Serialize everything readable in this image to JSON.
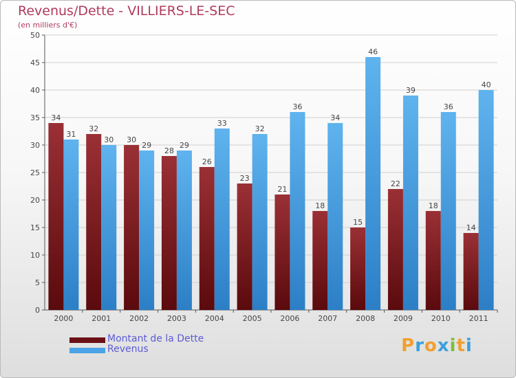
{
  "chart_data": {
    "type": "bar",
    "title": "Revenus/Dette - VILLIERS-LE-SEC",
    "subtitle": "(en milliers d'€)",
    "categories": [
      "2000",
      "2001",
      "2002",
      "2003",
      "2004",
      "2005",
      "2006",
      "2007",
      "2008",
      "2009",
      "2010",
      "2011"
    ],
    "series": [
      {
        "name": "Montant de la Dette",
        "color": "#7a1a1e",
        "values": [
          34,
          32,
          30,
          28,
          26,
          23,
          21,
          18,
          15,
          22,
          18,
          14
        ]
      },
      {
        "name": "Revenus",
        "color": "#4aa3e6",
        "values": [
          31,
          30,
          29,
          29,
          33,
          32,
          36,
          34,
          46,
          39,
          36,
          40
        ]
      }
    ],
    "ylim": [
      0,
      50
    ],
    "yticks": [
      0,
      5,
      10,
      15,
      20,
      25,
      30,
      35,
      40,
      45,
      50
    ],
    "grid": true,
    "legend": "bottom-left"
  },
  "logo": {
    "letters": [
      "P",
      "r",
      "o",
      "x",
      "i",
      "t",
      "i"
    ],
    "colors": [
      "#f0a030",
      "#3aa0dc",
      "#f0a030",
      "#3aa0dc",
      "#7bbf3a",
      "#f0a030",
      "#3aa0dc"
    ]
  }
}
